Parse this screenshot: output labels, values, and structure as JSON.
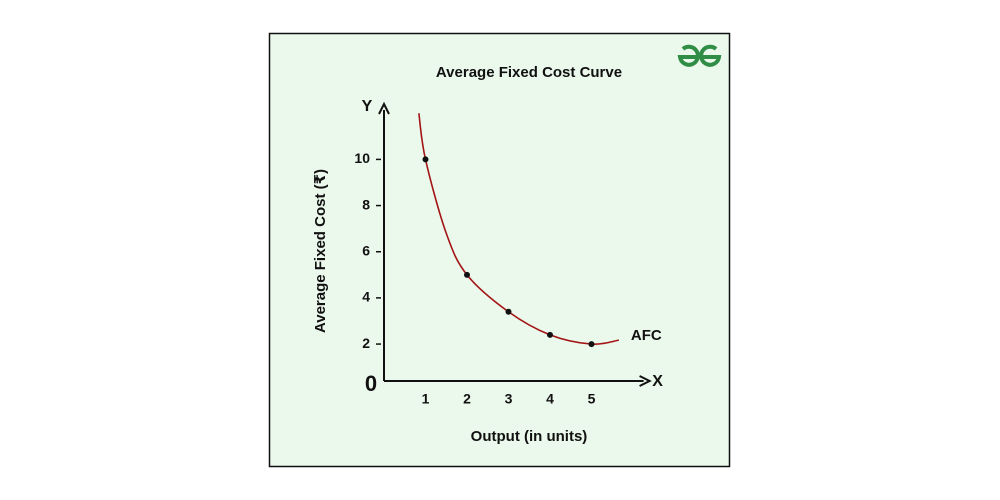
{
  "chart_data": {
    "type": "line",
    "title": "Average Fixed Cost Curve",
    "x_label": "Output (in units)",
    "y_label": "Average Fixed Cost (₹)",
    "x_axis_name": "X",
    "y_axis_name": "Y",
    "origin_label": "0",
    "xlim": [
      0,
      6.4
    ],
    "ylim": [
      0.4,
      12.4
    ],
    "xticks": [
      1,
      2,
      3,
      4,
      5
    ],
    "yticks": [
      2,
      4,
      6,
      8,
      10
    ],
    "series": [
      {
        "name": "AFC",
        "color": "#a31515",
        "x": [
          0.84,
          1,
          1.5,
          2,
          3,
          4,
          5,
          5.66
        ],
        "values": [
          12,
          10,
          6.8,
          5,
          3.4,
          2.4,
          2,
          2.17
        ]
      }
    ],
    "markers": {
      "color": "#111111",
      "x": [
        1,
        2,
        3,
        4,
        5
      ],
      "values": [
        10,
        5,
        3.4,
        2.4,
        2
      ]
    }
  }
}
